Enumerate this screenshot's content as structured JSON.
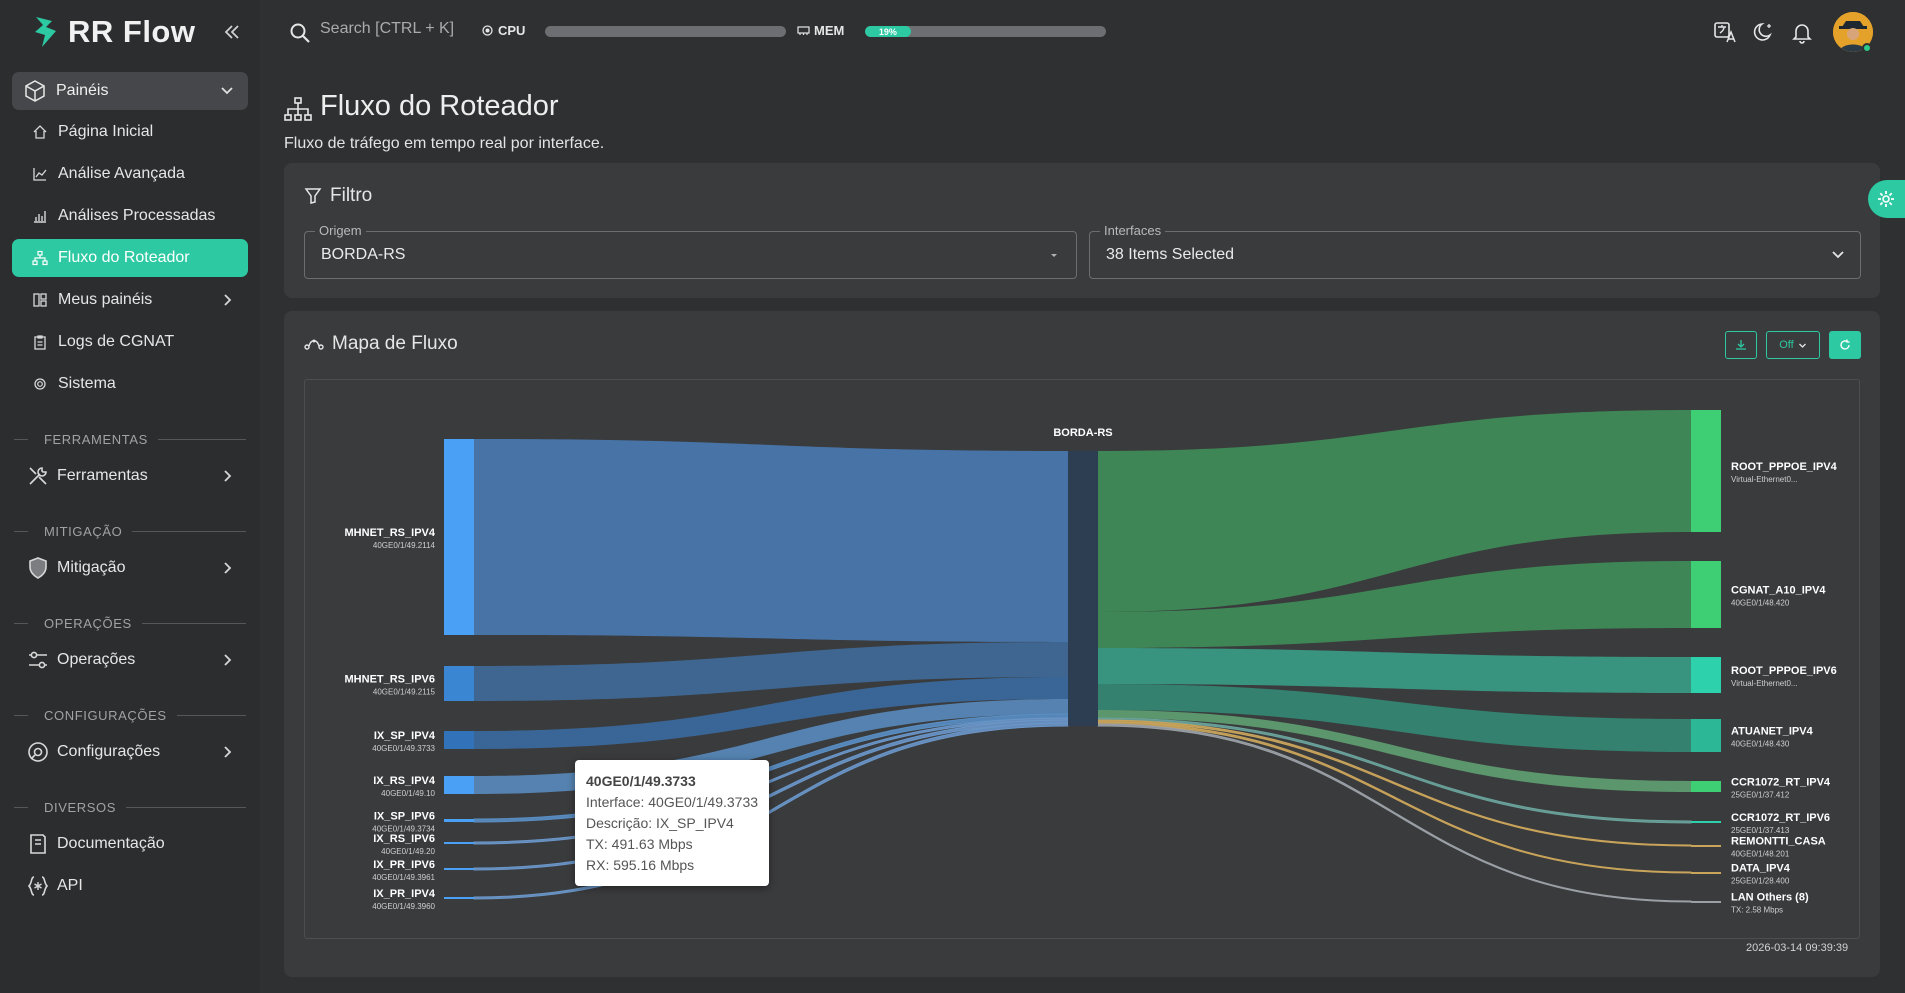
{
  "app": {
    "name": "RR Flow"
  },
  "sidebar": {
    "group": {
      "label": "Painéis"
    },
    "items": [
      {
        "label": "Página Inicial"
      },
      {
        "label": "Análise Avançada"
      },
      {
        "label": "Análises Processadas"
      },
      {
        "label": "Fluxo do Roteador",
        "active": true
      },
      {
        "label": "Meus painéis"
      },
      {
        "label": "Logs de CGNAT"
      },
      {
        "label": "Sistema"
      }
    ],
    "sections": [
      {
        "title": "FERRAMENTAS",
        "item": "Ferramentas"
      },
      {
        "title": "MITIGAÇÃO",
        "item": "Mitigação"
      },
      {
        "title": "OPERAÇÕES",
        "item": "Operações"
      },
      {
        "title": "CONFIGURAÇÕES",
        "item": "Configurações"
      },
      {
        "title": "DIVERSOS",
        "items": [
          "Documentação",
          "API"
        ]
      }
    ]
  },
  "topbar": {
    "search_placeholder": "Search [CTRL + K]",
    "cpu": {
      "label": "CPU",
      "percent": 0
    },
    "mem": {
      "label": "MEM",
      "percent": 19,
      "text": "19%"
    }
  },
  "page": {
    "title": "Fluxo do Roteador",
    "subtitle": "Fluxo de tráfego em tempo real por interface."
  },
  "filter": {
    "title": "Filtro",
    "origem": {
      "legend": "Origem",
      "value": "BORDA-RS"
    },
    "interfaces": {
      "legend": "Interfaces",
      "value": "38 Items Selected"
    }
  },
  "flow": {
    "title": "Mapa de Fluxo",
    "toggle_label": "Off",
    "timestamp": "2026-03-14 09:39:39",
    "center": {
      "name": "BORDA-RS"
    },
    "sources": [
      {
        "name": "MHNET_RS_IPV4",
        "sub": "40GE0/1/49.2114"
      },
      {
        "name": "MHNET_RS_IPV6",
        "sub": "40GE0/1/49.2115"
      },
      {
        "name": "IX_SP_IPV4",
        "sub": "40GE0/1/49.3733"
      },
      {
        "name": "IX_RS_IPV4",
        "sub": "40GE0/1/49.10"
      },
      {
        "name": "IX_SP_IPV6",
        "sub": "40GE0/1/49.3734"
      },
      {
        "name": "IX_RS_IPV6",
        "sub": "40GE0/1/49.20"
      },
      {
        "name": "IX_PR_IPV6",
        "sub": "40GE0/1/49.3961"
      },
      {
        "name": "IX_PR_IPV4",
        "sub": "40GE0/1/49.3960"
      }
    ],
    "targets": [
      {
        "name": "ROOT_PPPOE_IPV4",
        "sub": "Virtual-Ethernet0..."
      },
      {
        "name": "CGNAT_A10_IPV4",
        "sub": "40GE0/1/48.420"
      },
      {
        "name": "ROOT_PPPOE_IPV6",
        "sub": "Virtual-Ethernet0..."
      },
      {
        "name": "ATUANET_IPV4",
        "sub": "40GE0/1/48.430"
      },
      {
        "name": "CCR1072_RT_IPV4",
        "sub": "25GE0/1/37.412"
      },
      {
        "name": "CCR1072_RT_IPV6",
        "sub": "25GE0/1/37.413"
      },
      {
        "name": "REMONTTI_CASA",
        "sub": "40GE0/1/48.201"
      },
      {
        "name": "DATA_IPV4",
        "sub": "25GE0/1/28.400"
      },
      {
        "name": "LAN Others (8)",
        "sub": "TX: 2.58 Mbps"
      }
    ],
    "tooltip": {
      "title": "40GE0/1/49.3733",
      "interface": "Interface: 40GE0/1/49.3733",
      "descricao": "Descrição: IX_SP_IPV4",
      "tx": "TX: 491.63 Mbps",
      "rx": "RX: 595.16 Mbps"
    }
  },
  "colors": {
    "accent": "#2dc9a2",
    "source_node": "#4aa0f5",
    "center_node": "#2e3e52",
    "target_node_green": "#3ecf75",
    "target_node_teal": "#2dd1ab"
  }
}
